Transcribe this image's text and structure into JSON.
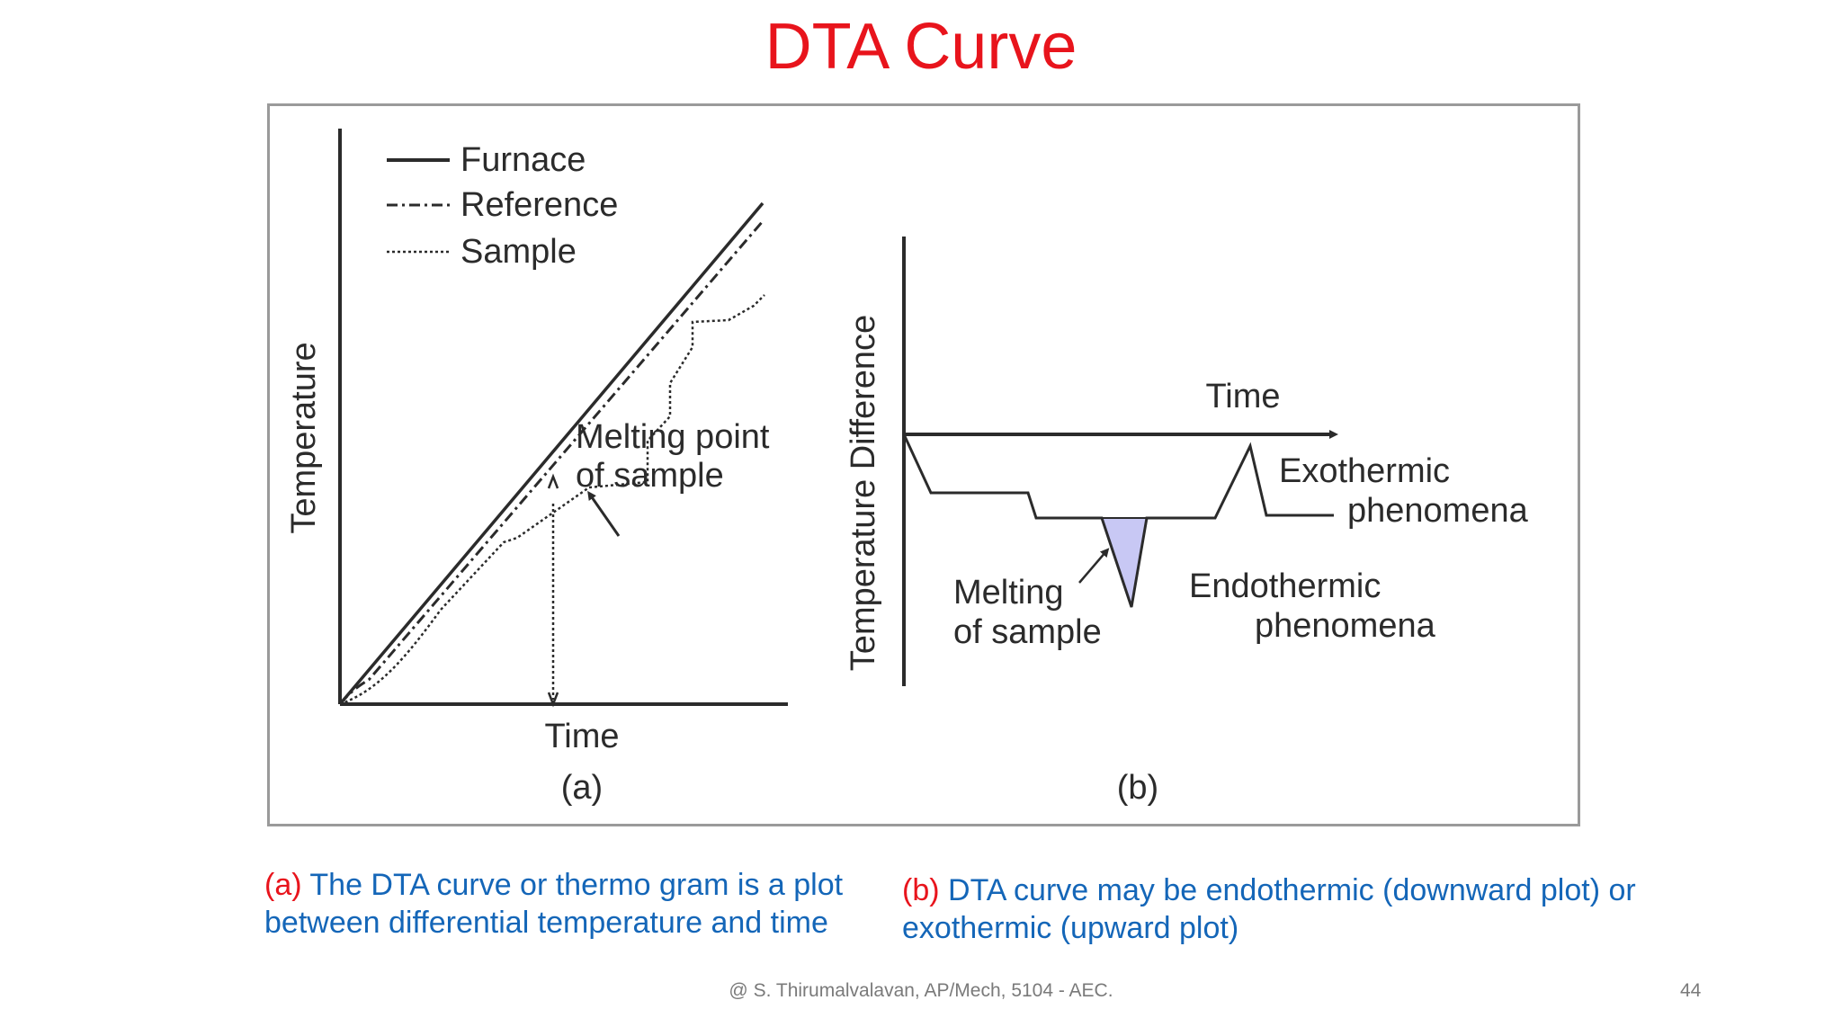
{
  "slide": {
    "title": "DTA Curve",
    "footer": "@ S. Thirumalvalavan, AP/Mech, 5104 - AEC.",
    "page_number": "44"
  },
  "figure": {
    "panel_a": {
      "ylabel": "Temperature",
      "xlabel": "Time",
      "legend": [
        {
          "label": "Furnace",
          "style": "solid"
        },
        {
          "label": "Reference",
          "style": "dash-dot"
        },
        {
          "label": "Sample",
          "style": "dotted"
        }
      ],
      "annotation_line1": "Melting point",
      "annotation_line2": "of sample",
      "panel_label": "(a)"
    },
    "panel_b": {
      "ylabel": "Temperature Difference",
      "xlabel": "Time",
      "exo_line1": "Exothermic",
      "exo_line2": "phenomena",
      "endo_line1": "Endothermic",
      "endo_line2": "phenomena",
      "melt_line1": "Melting",
      "melt_line2": "of sample",
      "panel_label": "(b)",
      "peak_fill": "#c8c8f4"
    }
  },
  "captions": {
    "a_tag": "(a)",
    "a_text": " The DTA curve or thermo gram is a plot between differential temperature and time",
    "b_tag": "(b)",
    "b_text": " DTA curve may be endothermic (downward plot) or exothermic (upward plot)"
  },
  "colors": {
    "title": "#e8141c",
    "caption_text": "#1466b8",
    "caption_tag": "#e8141c",
    "line": "#2b2b2b"
  }
}
